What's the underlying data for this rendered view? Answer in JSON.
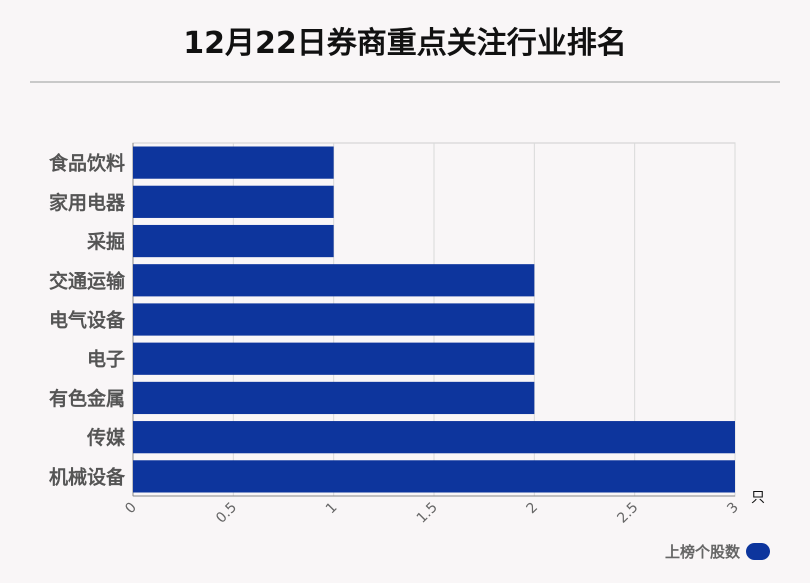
{
  "chart_data": {
    "type": "bar",
    "orientation": "horizontal",
    "title": "12月22日券商重点关注行业排名",
    "categories": [
      "食品饮料",
      "家用电器",
      "采掘",
      "交通运输",
      "电气设备",
      "电子",
      "有色金属",
      "传媒",
      "机械设备"
    ],
    "series": [
      {
        "name": "上榜个股数",
        "values": [
          1,
          1,
          1,
          2,
          2,
          2,
          2,
          3,
          3
        ],
        "color": "#0d359d"
      }
    ],
    "xlim": [
      0,
      3
    ],
    "xticks": [
      "0",
      "0.5",
      "1",
      "1.5",
      "2",
      "2.5",
      "3"
    ],
    "xunit": "只",
    "grid": true,
    "legend": "bottom-right"
  }
}
